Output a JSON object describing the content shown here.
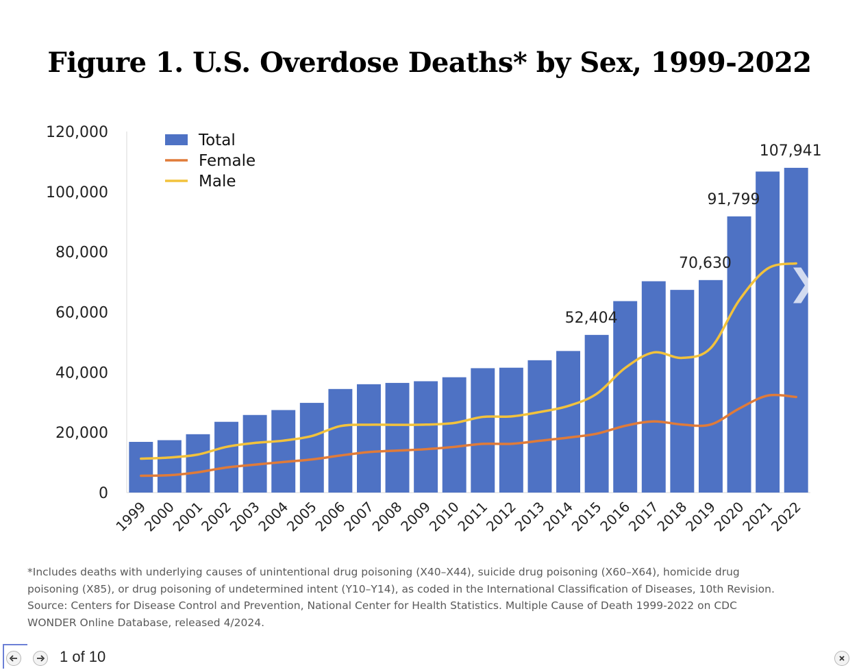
{
  "title": "Figure 1. U.S. Overdose Deaths* by Sex, 1999-2022",
  "chart_data": {
    "type": "bar",
    "categories": [
      "1999",
      "2000",
      "2001",
      "2002",
      "2003",
      "2004",
      "2005",
      "2006",
      "2007",
      "2008",
      "2009",
      "2010",
      "2011",
      "2012",
      "2013",
      "2014",
      "2015",
      "2016",
      "2017",
      "2018",
      "2019",
      "2020",
      "2021",
      "2022"
    ],
    "ylim": [
      0,
      120000
    ],
    "yticks": [
      0,
      20000,
      40000,
      60000,
      80000,
      100000,
      120000
    ],
    "ytick_labels": [
      "0",
      "20,000",
      "40,000",
      "60,000",
      "80,000",
      "100,000",
      "120,000"
    ],
    "grid": false,
    "legend_position": "top-left",
    "series": [
      {
        "name": "Total",
        "type": "bar",
        "color": "#4e72c4",
        "values": [
          16849,
          17415,
          19394,
          23518,
          25785,
          27424,
          29813,
          34425,
          36010,
          36450,
          37004,
          38329,
          41340,
          41502,
          43982,
          47055,
          52404,
          63632,
          70237,
          67367,
          70630,
          91799,
          106699,
          107941
        ]
      },
      {
        "name": "Female",
        "type": "line",
        "color": "#e07b39",
        "values": [
          5591,
          5770,
          6754,
          8333,
          9282,
          10160,
          11019,
          12316,
          13469,
          13943,
          14417,
          15185,
          16191,
          16198,
          17210,
          18265,
          19570,
          22193,
          23663,
          22604,
          22611,
          27904,
          32240,
          31768
        ]
      },
      {
        "name": "Male",
        "type": "line",
        "color": "#f2c23c",
        "values": [
          11258,
          11645,
          12640,
          15185,
          16503,
          17264,
          18794,
          22109,
          22541,
          22507,
          22587,
          23144,
          25149,
          25304,
          26772,
          28790,
          32834,
          41439,
          46574,
          44763,
          48019,
          63895,
          74459,
          76173
        ]
      }
    ],
    "annotations": [
      {
        "category": "2015",
        "label": "52,404"
      },
      {
        "category": "2019",
        "label": "70,630"
      },
      {
        "category": "2020",
        "label": "91,799"
      },
      {
        "category": "2022",
        "label": "107,941"
      }
    ]
  },
  "footnote": [
    "*Includes deaths with underlying causes of unintentional drug poisoning (X40–X44), suicide drug poisoning (X60–X64), homicide drug",
    "poisoning (X85), or drug poisoning of undetermined intent (Y10–Y14), as coded in the International Classification of Diseases, 10th Revision.",
    "Source: Centers for Disease Control and Prevention, National Center for Health Statistics. Multiple Cause of Death 1999-2022 on CDC",
    "WONDER Online Database, released 4/2024."
  ],
  "viewer": {
    "page_indicator": "1 of 10",
    "prev_icon": "left-arrow-icon",
    "next_icon": "right-arrow-icon",
    "close_icon": "close-icon",
    "next_slide_glyph": "❯"
  }
}
